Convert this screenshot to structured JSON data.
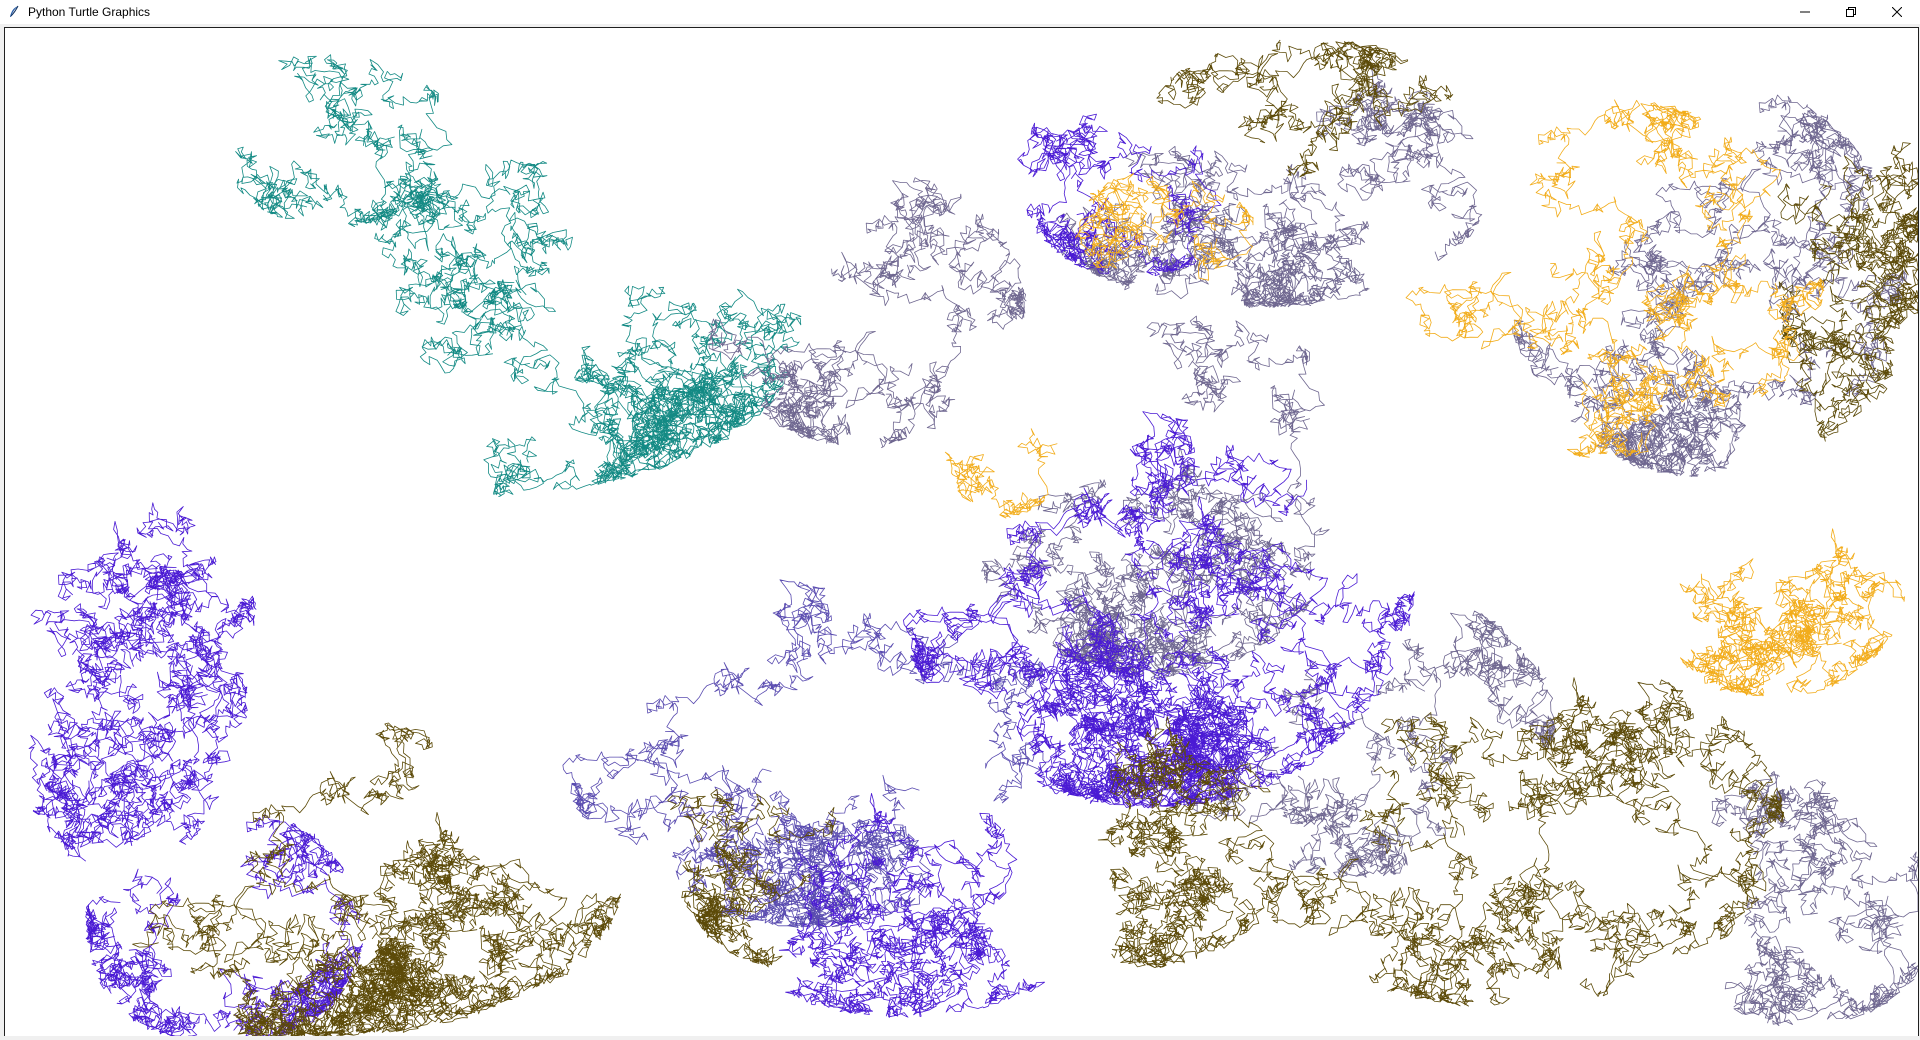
{
  "window": {
    "title": "Python Turtle Graphics",
    "icons": {
      "app": "turtle-feather-icon",
      "minimize": "minimize-icon",
      "restore": "restore-icon",
      "close": "close-icon"
    }
  },
  "canvas": {
    "background": "#ffffff",
    "content": "random-walk turtle traces",
    "palette": {
      "teal": "#138a84",
      "slate": "#6f6790",
      "blue": "#4a1ad4",
      "violet": "#5a4cb0",
      "olive": "#5c4a08",
      "gold": "#f2ac1a"
    }
  }
}
